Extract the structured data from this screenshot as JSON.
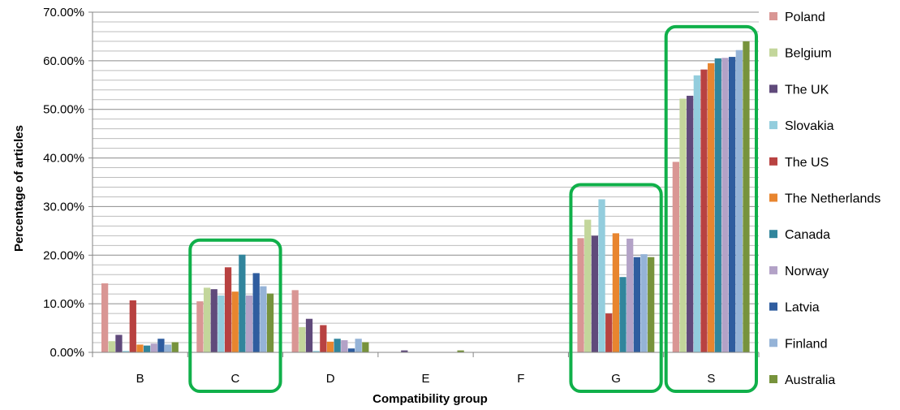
{
  "chart_data": {
    "type": "bar",
    "xlabel": "Compatibility group",
    "ylabel": "Percentage of articles",
    "ylim": [
      0,
      70
    ],
    "y_ticks": [
      "0.00%",
      "10.00%",
      "20.00%",
      "30.00%",
      "40.00%",
      "50.00%",
      "60.00%",
      "70.00%"
    ],
    "grid": true,
    "legend_position": "right",
    "highlighted_categories": [
      "C",
      "G",
      "S"
    ],
    "highlight_color": "#10b04a",
    "categories": [
      "B",
      "C",
      "D",
      "E",
      "F",
      "G",
      "S"
    ],
    "series": [
      {
        "name": "Poland",
        "color": "#d99694",
        "values": [
          14.2,
          10.5,
          12.8,
          0,
          0,
          23.5,
          39.2
        ]
      },
      {
        "name": "Belgium",
        "color": "#c3d69b",
        "values": [
          2.3,
          13.3,
          5.2,
          0,
          0,
          27.3,
          52.2
        ]
      },
      {
        "name": "The UK",
        "color": "#604a7b",
        "values": [
          3.6,
          13.0,
          6.9,
          0.4,
          0,
          24.0,
          52.8
        ]
      },
      {
        "name": "Slovakia",
        "color": "#93cddd",
        "values": [
          0.3,
          11.7,
          0.3,
          0,
          0,
          31.5,
          57.0
        ]
      },
      {
        "name": "The US",
        "color": "#b84241",
        "values": [
          10.7,
          17.5,
          5.6,
          0,
          0,
          8.0,
          58.2
        ]
      },
      {
        "name": "The Netherlands",
        "color": "#e8852f",
        "values": [
          1.6,
          12.5,
          2.2,
          0,
          0,
          24.5,
          59.5
        ]
      },
      {
        "name": "Canada",
        "color": "#31859c",
        "values": [
          1.4,
          20.1,
          2.8,
          0,
          0,
          15.5,
          60.5
        ]
      },
      {
        "name": "Norway",
        "color": "#b3a2c7",
        "values": [
          1.8,
          11.7,
          2.5,
          0,
          0,
          23.4,
          60.6
        ]
      },
      {
        "name": "Latvia",
        "color": "#2f5d9f",
        "values": [
          2.8,
          16.3,
          0.8,
          0,
          0,
          19.6,
          60.8
        ]
      },
      {
        "name": "Finland",
        "color": "#95b3d7",
        "values": [
          1.6,
          13.6,
          2.8,
          0,
          0,
          20.2,
          62.2
        ]
      },
      {
        "name": "Australia",
        "color": "#77933c",
        "values": [
          2.1,
          12.1,
          2.1,
          0.4,
          0,
          19.6,
          64.0
        ]
      }
    ]
  }
}
